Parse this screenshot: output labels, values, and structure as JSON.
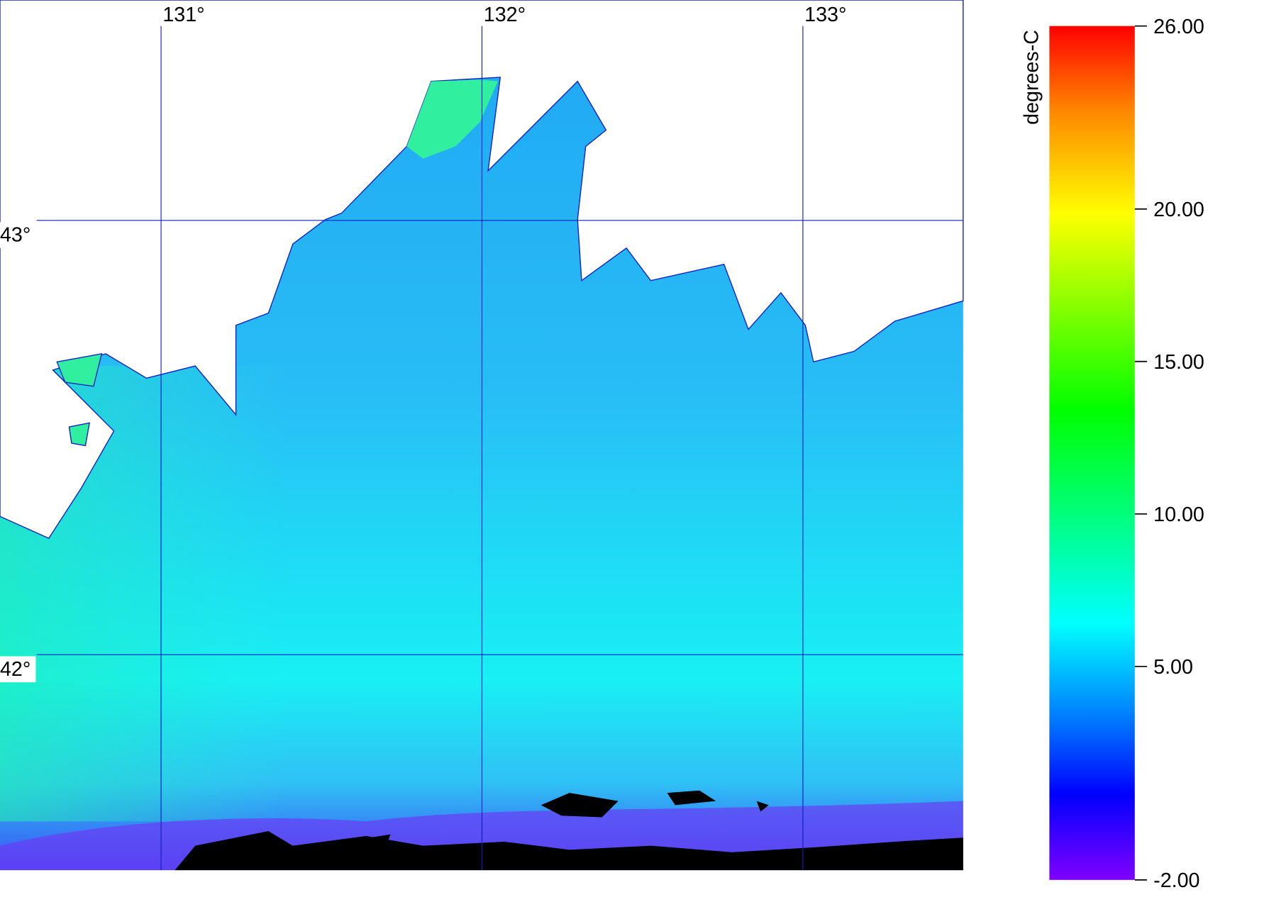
{
  "map": {
    "lon_labels": [
      {
        "value": 131,
        "label": "131°"
      },
      {
        "value": 132,
        "label": "132°"
      },
      {
        "value": 133,
        "label": "133°"
      }
    ],
    "lat_labels": [
      {
        "value": 43,
        "label": "43°"
      },
      {
        "value": 42,
        "label": "42°"
      }
    ]
  },
  "colorbar": {
    "title": "degrees-C",
    "lim": [
      -2,
      26
    ],
    "ticks": [
      {
        "value": -2,
        "label": "-2.00"
      },
      {
        "value": 5,
        "label": "5.00"
      },
      {
        "value": 10,
        "label": "10.00"
      },
      {
        "value": 15,
        "label": "15.00"
      },
      {
        "value": 20,
        "label": "20.00"
      },
      {
        "value": 26,
        "label": "26.00"
      }
    ]
  }
}
